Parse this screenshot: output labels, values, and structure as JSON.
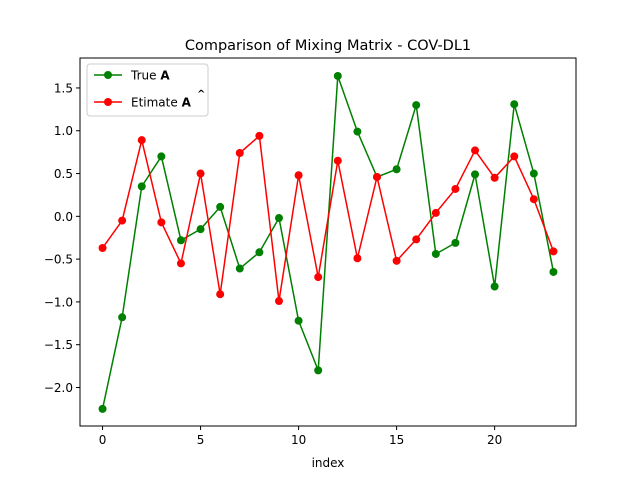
{
  "chart_data": {
    "type": "line",
    "title": "Comparison of Mixing Matrix - COV-DL1",
    "xlabel": "index",
    "ylabel": "",
    "xlim": [
      -1.15,
      24.15
    ],
    "ylim": [
      -2.45,
      1.85
    ],
    "xticks": [
      0,
      5,
      10,
      15,
      20
    ],
    "yticks": [
      -2.0,
      -1.5,
      -1.0,
      -0.5,
      0.0,
      0.5,
      1.0,
      1.5
    ],
    "ytick_labels": [
      "−2.0",
      "−1.5",
      "−1.0",
      "−0.5",
      "0.0",
      "0.5",
      "1.0",
      "1.5"
    ],
    "legend_position": "top-left",
    "x": [
      0,
      1,
      2,
      3,
      4,
      5,
      6,
      7,
      8,
      9,
      10,
      11,
      12,
      13,
      14,
      15,
      16,
      17,
      18,
      19,
      20,
      21,
      22,
      23
    ],
    "series": [
      {
        "name": "True A",
        "legend_prefix": "True ",
        "legend_symbol": "A",
        "color": "#008000",
        "values": [
          -2.25,
          -1.18,
          0.35,
          0.7,
          -0.28,
          -0.15,
          0.11,
          -0.61,
          -0.42,
          -0.02,
          -1.22,
          -1.8,
          1.64,
          0.99,
          0.46,
          0.55,
          1.3,
          -0.44,
          -0.31,
          0.49,
          -0.82,
          1.31,
          0.5,
          -0.65
        ]
      },
      {
        "name": "Etimate Â",
        "legend_prefix": "Etimate ",
        "legend_symbol": "A",
        "legend_hat": "^",
        "color": "#ff0000",
        "values": [
          -0.37,
          -0.05,
          0.89,
          -0.07,
          -0.55,
          0.5,
          -0.91,
          0.74,
          0.94,
          -0.99,
          0.48,
          -0.71,
          0.65,
          -0.49,
          0.46,
          -0.52,
          -0.27,
          0.04,
          0.32,
          0.77,
          0.45,
          0.7,
          0.2,
          -0.41
        ]
      }
    ]
  }
}
